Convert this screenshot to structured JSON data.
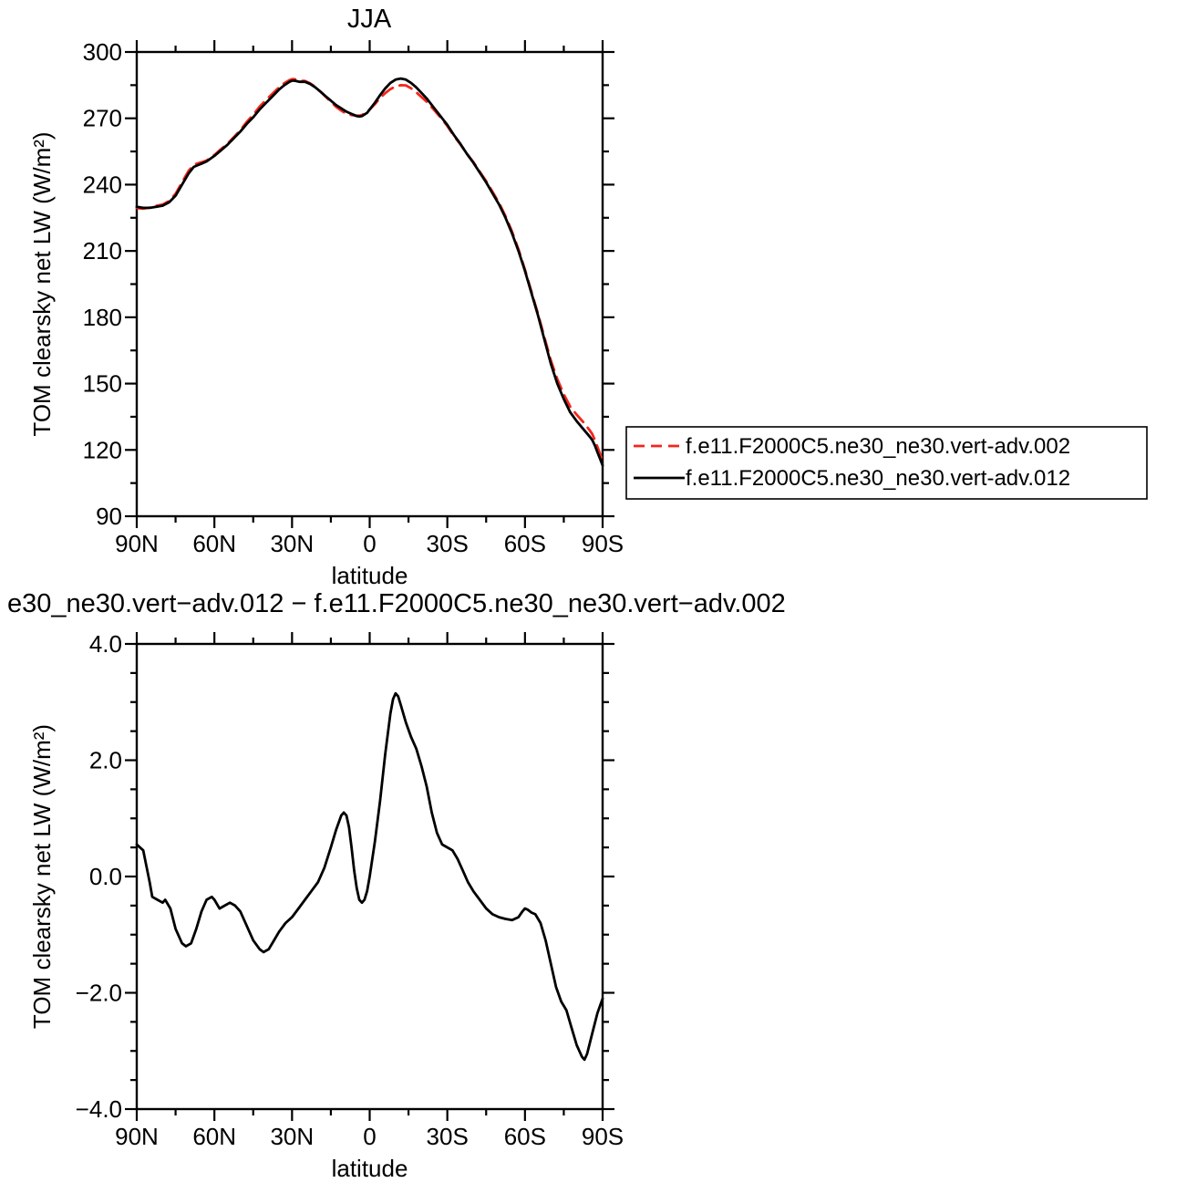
{
  "page": {
    "background": "#ffffff",
    "axis_color": "#000000"
  },
  "chart_data": [
    {
      "type": "line",
      "title": "JJA",
      "xlabel": "latitude",
      "ylabel": "TOM clearsky net LW (W/m²)",
      "xlim": [
        90,
        -90
      ],
      "ylim": [
        90,
        300
      ],
      "grid": false,
      "legend_position": "right-middle",
      "xticks": {
        "values": [
          90,
          60,
          30,
          0,
          -30,
          -60,
          -90
        ],
        "labels": [
          "90N",
          "60N",
          "30N",
          "0",
          "30S",
          "60S",
          "90S"
        ]
      },
      "yticks": {
        "values": [
          90,
          120,
          150,
          180,
          210,
          240,
          270,
          300
        ],
        "labels": [
          "90",
          "120",
          "150",
          "180",
          "210",
          "240",
          "270",
          "300"
        ]
      },
      "yminor_step": 15,
      "x": [
        90,
        87.5,
        85,
        82.5,
        80,
        77.5,
        75,
        72.5,
        70,
        68,
        66,
        65,
        63,
        60,
        57.5,
        55,
        52.5,
        50,
        47.5,
        45,
        42.5,
        40,
        37.5,
        35,
        33,
        31,
        30,
        29,
        27,
        25,
        23,
        21,
        19,
        17,
        15,
        13,
        11,
        9,
        7,
        5,
        4,
        3,
        1,
        0,
        -2,
        -4,
        -6,
        -8,
        -10,
        -12,
        -14,
        -16,
        -18,
        -20,
        -22,
        -25,
        -28,
        -30,
        -32.5,
        -35,
        -37.5,
        -40,
        -42.5,
        -45,
        -47.5,
        -50,
        -52.5,
        -55,
        -57.5,
        -60,
        -62.5,
        -65,
        -67.5,
        -70,
        -72.5,
        -75,
        -77.5,
        -80,
        -82.5,
        -85,
        -86,
        -87,
        -88,
        -89,
        -90
      ],
      "series": [
        {
          "name": "f.e11.F2000C5.ne30_ne30.vert-adv.002",
          "color": "#f4261c",
          "style": "dashed",
          "values": [
            229.4,
            229.1,
            229.6,
            230.4,
            231,
            232.6,
            235.9,
            241.1,
            246.2,
            249,
            249.8,
            250.1,
            250.9,
            253.4,
            256,
            258.5,
            261.5,
            264.6,
            268.4,
            271.6,
            275.3,
            278.3,
            281.2,
            284,
            285.9,
            287.3,
            287.7,
            287.7,
            287,
            286.9,
            285.8,
            284.2,
            282,
            279.8,
            277.5,
            275.2,
            273.5,
            272,
            271.5,
            271.2,
            271.2,
            271.5,
            272.8,
            274,
            276.4,
            279.2,
            281.4,
            283.2,
            284.4,
            285,
            284.9,
            283.6,
            281.8,
            279.6,
            277.5,
            273.6,
            269.5,
            266.5,
            262.1,
            258.3,
            254,
            250.3,
            245.9,
            241.6,
            236.7,
            231.7,
            225.7,
            218.8,
            210.7,
            201.6,
            191.6,
            181.7,
            171,
            160.5,
            152,
            145.2,
            139.5,
            135.9,
            132.6,
            128.9,
            127.2,
            124.5,
            121.4,
            118.2,
            115.1
          ]
        },
        {
          "name": "f.e11.F2000C5.ne30_ne30.vert-adv.012",
          "color": "#000000",
          "style": "solid",
          "values": [
            230,
            229.5,
            229.5,
            230,
            230.5,
            232,
            235,
            240,
            245,
            248,
            249,
            249.5,
            250.5,
            253,
            255.5,
            258,
            261,
            264,
            267.5,
            270.5,
            274,
            277,
            280,
            283,
            285,
            286.5,
            287,
            287,
            286.5,
            286.5,
            285.5,
            284,
            282,
            280,
            278,
            276,
            274.5,
            273,
            272,
            271,
            270.8,
            271,
            272.5,
            274,
            277,
            280.5,
            283.5,
            286,
            287.5,
            288,
            287.5,
            286,
            284,
            281.5,
            279,
            274.5,
            270,
            267,
            262.5,
            258.5,
            254,
            250,
            245.5,
            241,
            236,
            231,
            225,
            218,
            210,
            201,
            191,
            181,
            170,
            159,
            150,
            143,
            137,
            133,
            129.5,
            126,
            124.5,
            122,
            119,
            116,
            113
          ]
        }
      ]
    },
    {
      "type": "line",
      "title": "e30_ne30.vert−adv.012 − f.e11.F2000C5.ne30_ne30.vert−adv.002",
      "xlabel": "latitude",
      "ylabel": "TOM clearsky net LW (W/m²)",
      "xlim": [
        90,
        -90
      ],
      "ylim": [
        -4,
        4
      ],
      "grid": false,
      "legend_position": "none",
      "xticks": {
        "values": [
          90,
          60,
          30,
          0,
          -30,
          -60,
          -90
        ],
        "labels": [
          "90N",
          "60N",
          "30N",
          "0",
          "30S",
          "60S",
          "90S"
        ]
      },
      "yticks": {
        "values": [
          -4,
          -2,
          0,
          2,
          4
        ],
        "labels": [
          "−4.0",
          "−2.0",
          "0.0",
          "2.0",
          "4.0"
        ]
      },
      "yminor_step": 0.5,
      "x": [
        90,
        87.5,
        85,
        84,
        82,
        80,
        79,
        77,
        75,
        72.5,
        71,
        69,
        67,
        65,
        63,
        61,
        60,
        58,
        56,
        54,
        52,
        50,
        47.5,
        45,
        42.5,
        41,
        39,
        37,
        35,
        32.5,
        30,
        27.5,
        25,
        22.5,
        20,
        17.5,
        15,
        13,
        11,
        10,
        9,
        8,
        7,
        6,
        5,
        4,
        3,
        2,
        1,
        0,
        -2,
        -4,
        -6,
        -8,
        -9,
        -10,
        -11,
        -12,
        -14,
        -16,
        -18,
        -20,
        -22,
        -24,
        -26,
        -28,
        -30,
        -32,
        -34,
        -36,
        -38,
        -40,
        -42.5,
        -45,
        -47.5,
        -50,
        -52.5,
        -55,
        -57.5,
        -59,
        -60,
        -61,
        -62.5,
        -64,
        -66,
        -68,
        -70,
        -72,
        -74,
        -76,
        -78,
        -80,
        -82,
        -83,
        -84,
        -86,
        -88,
        -90
      ],
      "series": [
        {
          "name": "",
          "color": "#000000",
          "style": "solid",
          "values": [
            0.55,
            0.45,
            -0.1,
            -0.35,
            -0.4,
            -0.45,
            -0.4,
            -0.55,
            -0.9,
            -1.15,
            -1.2,
            -1.15,
            -0.9,
            -0.6,
            -0.4,
            -0.35,
            -0.4,
            -0.55,
            -0.5,
            -0.45,
            -0.5,
            -0.6,
            -0.85,
            -1.1,
            -1.25,
            -1.3,
            -1.25,
            -1.1,
            -0.95,
            -0.8,
            -0.7,
            -0.55,
            -0.4,
            -0.25,
            -0.1,
            0.15,
            0.5,
            0.8,
            1.05,
            1.1,
            1.05,
            0.85,
            0.5,
            0.1,
            -0.2,
            -0.4,
            -0.45,
            -0.4,
            -0.25,
            0.0,
            0.6,
            1.3,
            2.1,
            2.8,
            3.05,
            3.15,
            3.1,
            2.95,
            2.65,
            2.4,
            2.2,
            1.9,
            1.55,
            1.1,
            0.75,
            0.55,
            0.5,
            0.45,
            0.3,
            0.1,
            -0.1,
            -0.25,
            -0.4,
            -0.55,
            -0.65,
            -0.7,
            -0.73,
            -0.75,
            -0.7,
            -0.6,
            -0.55,
            -0.57,
            -0.62,
            -0.65,
            -0.8,
            -1.1,
            -1.5,
            -1.9,
            -2.15,
            -2.3,
            -2.6,
            -2.9,
            -3.1,
            -3.15,
            -3.05,
            -2.7,
            -2.35,
            -2.1
          ]
        }
      ]
    }
  ]
}
